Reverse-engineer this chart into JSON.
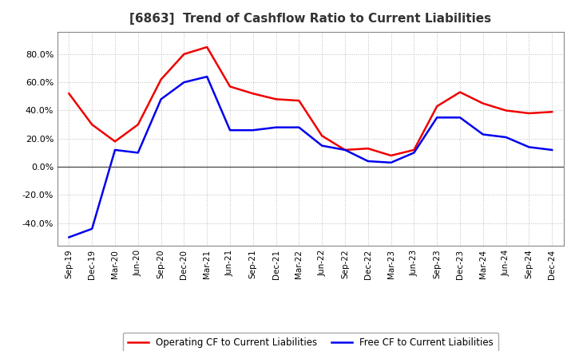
{
  "title": "[6863]  Trend of Cashflow Ratio to Current Liabilities",
  "x_labels": [
    "Sep-19",
    "Dec-19",
    "Mar-20",
    "Jun-20",
    "Sep-20",
    "Dec-20",
    "Mar-21",
    "Jun-21",
    "Sep-21",
    "Dec-21",
    "Mar-22",
    "Jun-22",
    "Sep-22",
    "Dec-22",
    "Mar-23",
    "Jun-23",
    "Sep-23",
    "Dec-23",
    "Mar-24",
    "Jun-24",
    "Sep-24",
    "Dec-24"
  ],
  "operating_cf": [
    0.52,
    0.3,
    0.18,
    0.3,
    0.62,
    0.8,
    0.85,
    0.57,
    0.52,
    0.48,
    0.47,
    0.22,
    0.12,
    0.13,
    0.08,
    0.12,
    0.43,
    0.53,
    0.45,
    0.4,
    0.38,
    0.39
  ],
  "free_cf": [
    -0.5,
    -0.44,
    0.12,
    0.1,
    0.48,
    0.6,
    0.64,
    0.26,
    0.26,
    0.28,
    0.28,
    0.15,
    0.12,
    0.04,
    0.03,
    0.1,
    0.35,
    0.35,
    0.23,
    0.21,
    0.14,
    0.12
  ],
  "operating_color": "#EE0000",
  "free_color": "#0000EE",
  "ylim": [
    -0.56,
    0.96
  ],
  "yticks": [
    -0.4,
    -0.2,
    0.0,
    0.2,
    0.4,
    0.6,
    0.8
  ],
  "bg_color": "#FFFFFF",
  "plot_bg_color": "#FFFFFF",
  "grid_color": "#BBBBBB",
  "title_fontsize": 11,
  "legend_labels": [
    "Operating CF to Current Liabilities",
    "Free CF to Current Liabilities"
  ]
}
